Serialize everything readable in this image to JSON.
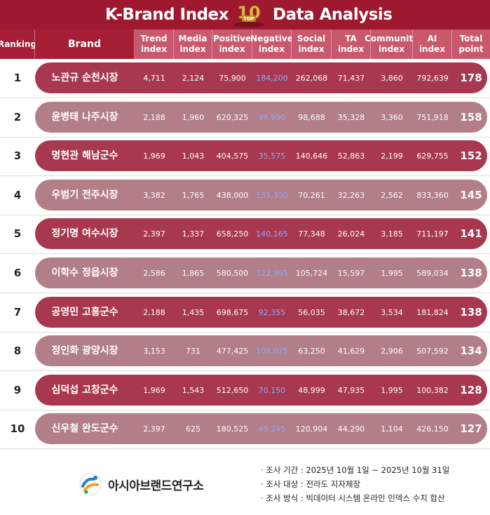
{
  "title": {
    "left": "K-Brand Index",
    "right": "Data Analysis",
    "badge_number": "10",
    "badge_word": "TOP"
  },
  "columns": [
    {
      "key": "ranking",
      "label": "Ranking"
    },
    {
      "key": "brand",
      "label": "Brand"
    },
    {
      "key": "trend",
      "label": "Trend index"
    },
    {
      "key": "media",
      "label": "Media index"
    },
    {
      "key": "positive",
      "label": "Positive index"
    },
    {
      "key": "negative",
      "label": "Negative index"
    },
    {
      "key": "social",
      "label": "Social index"
    },
    {
      "key": "ta",
      "label": "TA index"
    },
    {
      "key": "community",
      "label": "Community index"
    },
    {
      "key": "ai",
      "label": "AI index"
    },
    {
      "key": "total",
      "label": "Total point"
    }
  ],
  "colors": {
    "title_bg": "#9e1830",
    "header_dark": "#a61e36",
    "header_light": "#c8596c",
    "pill_dark": "#a8384f",
    "pill_light": "#b27e88",
    "negative_text": "#8fa9ff"
  },
  "chart_data": {
    "type": "table",
    "title": "K-Brand Index Data Analysis",
    "columns": [
      "Ranking",
      "Brand",
      "Trend index",
      "Media index",
      "Positive index",
      "Negative index",
      "Social index",
      "TA index",
      "Community index",
      "AI index",
      "Total point"
    ],
    "rows": [
      {
        "ranking": "1",
        "brand": "노관규 순천시장",
        "trend": "4,711",
        "media": "2,124",
        "positive": "75,900",
        "negative": "184,200",
        "social": "262,068",
        "ta": "71,437",
        "community": "3,860",
        "ai": "792,639",
        "total": "178"
      },
      {
        "ranking": "2",
        "brand": "윤병태 나주시장",
        "trend": "2,188",
        "media": "1,960",
        "positive": "620,325",
        "negative": "99,990",
        "social": "98,688",
        "ta": "35,328",
        "community": "3,360",
        "ai": "751,918",
        "total": "158"
      },
      {
        "ranking": "3",
        "brand": "명현관 해남군수",
        "trend": "1,969",
        "media": "1,043",
        "positive": "404,575",
        "negative": "35,575",
        "social": "140,646",
        "ta": "52,863",
        "community": "2,199",
        "ai": "629,755",
        "total": "152"
      },
      {
        "ranking": "4",
        "brand": "우범기 전주시장",
        "trend": "3,382",
        "media": "1,765",
        "positive": "438,000",
        "negative": "131,330",
        "social": "70,261",
        "ta": "32,263",
        "community": "2,562",
        "ai": "833,360",
        "total": "145"
      },
      {
        "ranking": "5",
        "brand": "정기명 여수시장",
        "trend": "2,397",
        "media": "1,337",
        "positive": "658,250",
        "negative": "140,165",
        "social": "77,348",
        "ta": "26,024",
        "community": "3,185",
        "ai": "711,197",
        "total": "141"
      },
      {
        "ranking": "6",
        "brand": "이학수 정읍시장",
        "trend": "2,586",
        "media": "1,865",
        "positive": "580,500",
        "negative": "122,995",
        "social": "105,724",
        "ta": "15,597",
        "community": "1,995",
        "ai": "589,034",
        "total": "138"
      },
      {
        "ranking": "7",
        "brand": "공영민 고흥군수",
        "trend": "2,188",
        "media": "1,435",
        "positive": "698,675",
        "negative": "92,355",
        "social": "56,035",
        "ta": "38,672",
        "community": "3,534",
        "ai": "181,824",
        "total": "138"
      },
      {
        "ranking": "8",
        "brand": "정인화 광양시장",
        "trend": "3,153",
        "media": "731",
        "positive": "477,425",
        "negative": "108,025",
        "social": "63,250",
        "ta": "41,629",
        "community": "2,906",
        "ai": "507,592",
        "total": "134"
      },
      {
        "ranking": "9",
        "brand": "심덕섭 고창군수",
        "trend": "1,969",
        "media": "1,543",
        "positive": "512,650",
        "negative": "70,150",
        "social": "48,999",
        "ta": "47,935",
        "community": "1,995",
        "ai": "100,382",
        "total": "128"
      },
      {
        "ranking": "10",
        "brand": "신우철 완도군수",
        "trend": "2,397",
        "media": "625",
        "positive": "180,525",
        "negative": "49,245",
        "social": "120,904",
        "ta": "44,290",
        "community": "1,104",
        "ai": "426,150",
        "total": "127"
      }
    ]
  },
  "footer": {
    "org": "아시아브랜드연구소",
    "logo_icon": "asia-brand-logo-icon",
    "notes": [
      "· 조사 기간 : 2025년 10월 1일 ~ 2025년 10월 31일",
      "· 조사 대상 : 전라도 지자체장",
      "· 조사 방식 : 빅데이터 시스템 온라인 인덱스 수치 합산"
    ]
  }
}
